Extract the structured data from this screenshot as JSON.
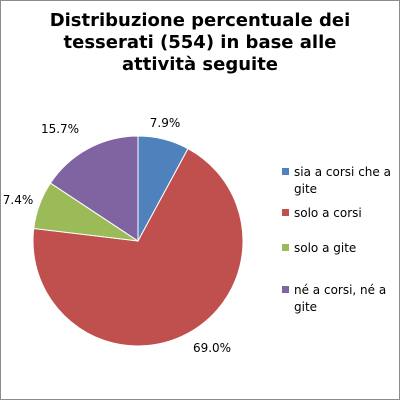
{
  "chart_data": {
    "type": "pie",
    "title": "Distribuzione percentuale dei tesserati (554) in base alle attività seguite",
    "categories": [
      "sia a corsi che a gite",
      "solo a corsi",
      "solo a gite",
      "né a corsi, né a gite"
    ],
    "values": [
      7.9,
      69.0,
      7.4,
      15.7
    ],
    "labels": [
      "7.9%",
      "69.0%",
      "7.4%",
      "15.7%"
    ],
    "colors": [
      "#4f81bd",
      "#c0504d",
      "#9bbb59",
      "#8064a2"
    ],
    "legend": "right"
  }
}
